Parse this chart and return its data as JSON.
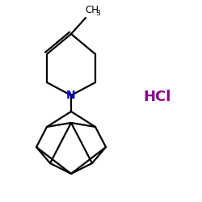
{
  "background_color": "#ffffff",
  "bond_color": "#000000",
  "N_color": "#0000cc",
  "HCl_color": "#8b008b",
  "HCl_text": "HCl",
  "N_text": "N",
  "figsize": [
    2.5,
    2.5
  ],
  "dpi": 100
}
